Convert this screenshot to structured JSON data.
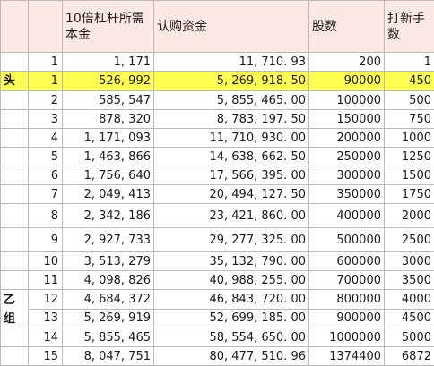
{
  "headers": {
    "label": "",
    "idx": "",
    "leverage": "10倍杠杆所需本金",
    "capital": "认购资金",
    "shares": "股数",
    "lots": "打新手数"
  },
  "rows": [
    {
      "label": "",
      "idx": "1",
      "leverage": "1, 171",
      "capital": "11, 710. 93",
      "shares": "200",
      "lots": "1"
    },
    {
      "label": "头",
      "idx": "1",
      "leverage": "526, 992",
      "capital": "5, 269, 918. 50",
      "shares": "90000",
      "lots": "450"
    },
    {
      "label": "",
      "idx": "2",
      "leverage": "585, 547",
      "capital": "5, 855, 465. 00",
      "shares": "100000",
      "lots": "500"
    },
    {
      "label": "",
      "idx": "3",
      "leverage": "878, 320",
      "capital": "8, 783, 197. 50",
      "shares": "150000",
      "lots": "750"
    },
    {
      "label": "",
      "idx": "4",
      "leverage": "1, 171, 093",
      "capital": "11, 710, 930. 00",
      "shares": "200000",
      "lots": "1000"
    },
    {
      "label": "",
      "idx": "5",
      "leverage": "1, 463, 866",
      "capital": "14, 638, 662. 50",
      "shares": "250000",
      "lots": "1250"
    },
    {
      "label": "",
      "idx": "6",
      "leverage": "1, 756, 640",
      "capital": "17, 566, 395. 00",
      "shares": "300000",
      "lots": "1500"
    },
    {
      "label": "",
      "idx": "7",
      "leverage": "2, 049, 413",
      "capital": "20, 494, 127. 50",
      "shares": "350000",
      "lots": "1750"
    },
    {
      "label": "",
      "idx": "8",
      "leverage": "2, 342, 186",
      "capital": "23, 421, 860. 00",
      "shares": "400000",
      "lots": "2000"
    },
    {
      "label": "",
      "idx": "9",
      "leverage": "2, 927, 733",
      "capital": "29, 277, 325. 00",
      "shares": "500000",
      "lots": "2500"
    },
    {
      "label": "",
      "idx": "10",
      "leverage": "3, 513, 279",
      "capital": "35, 132, 790. 00",
      "shares": "600000",
      "lots": "3000"
    },
    {
      "label": "",
      "idx": "11",
      "leverage": "4, 098, 826",
      "capital": "40, 988, 255. 00",
      "shares": "700000",
      "lots": "3500"
    },
    {
      "label": "",
      "idx": "12",
      "leverage": "4, 684, 372",
      "capital": "46, 843, 720. 00",
      "shares": "800000",
      "lots": "4000"
    },
    {
      "label": "",
      "idx": "13",
      "leverage": "5, 269, 919",
      "capital": "52, 699, 185. 00",
      "shares": "900000",
      "lots": "4500"
    },
    {
      "label": "",
      "idx": "14",
      "leverage": "5, 855, 465",
      "capital": "58, 554, 650. 00",
      "shares": "1000000",
      "lots": "5000"
    },
    {
      "label": "",
      "idx": "15",
      "leverage": "8, 047, 751",
      "capital": "80, 477, 510. 96",
      "shares": "1374400",
      "lots": "6872"
    }
  ],
  "group_label_1": "乙",
  "group_label_2": "组",
  "highlight_color": "#ffff52",
  "header_color": "#fde9e3"
}
